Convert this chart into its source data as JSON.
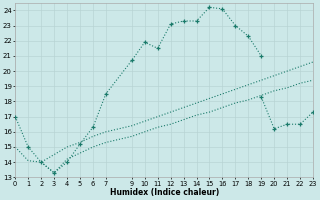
{
  "xlabel": "Humidex (Indice chaleur)",
  "bg_color": "#cce8e8",
  "grid_color": "#b8d4d4",
  "line_color": "#1a7a6a",
  "xlim": [
    0,
    23
  ],
  "ylim": [
    13,
    24.5
  ],
  "xtick_vals": [
    0,
    1,
    2,
    3,
    4,
    5,
    6,
    7,
    9,
    10,
    11,
    12,
    13,
    14,
    15,
    16,
    17,
    18,
    19,
    20,
    21,
    22,
    23
  ],
  "ytick_vals": [
    13,
    14,
    15,
    16,
    17,
    18,
    19,
    20,
    21,
    22,
    23,
    24
  ],
  "s1x": [
    0,
    1,
    2,
    3,
    4,
    5,
    6,
    7,
    9,
    10,
    11,
    12,
    13,
    14,
    15,
    16,
    17,
    18,
    19
  ],
  "s1y": [
    17.0,
    15.0,
    14.0,
    13.3,
    14.0,
    15.2,
    16.3,
    18.5,
    20.7,
    21.9,
    21.5,
    23.1,
    23.3,
    23.3,
    24.2,
    24.1,
    23.0,
    22.3,
    21.0
  ],
  "s2x": [
    19,
    20,
    21,
    22,
    23
  ],
  "s2y": [
    18.3,
    16.2,
    16.5,
    16.5,
    17.3
  ],
  "s3x": [
    0,
    1,
    2,
    3,
    4,
    5,
    6,
    7,
    9,
    10,
    11,
    12,
    13,
    14,
    15,
    16,
    17,
    18,
    19,
    20,
    21,
    22,
    23
  ],
  "s3y": [
    15.0,
    14.1,
    14.0,
    14.5,
    15.0,
    15.3,
    15.7,
    16.0,
    16.4,
    16.7,
    17.0,
    17.3,
    17.6,
    17.9,
    18.2,
    18.5,
    18.8,
    19.1,
    19.4,
    19.7,
    20.0,
    20.3,
    20.6
  ],
  "s4x": [
    2,
    3,
    4,
    5,
    6,
    7,
    9,
    10,
    11,
    12,
    13,
    14,
    15,
    16,
    17,
    18,
    19,
    20,
    21,
    22,
    23
  ],
  "s4y": [
    14.0,
    13.3,
    14.2,
    14.6,
    15.0,
    15.3,
    15.7,
    16.0,
    16.3,
    16.5,
    16.8,
    17.1,
    17.3,
    17.6,
    17.9,
    18.1,
    18.4,
    18.7,
    18.9,
    19.2,
    19.4
  ]
}
